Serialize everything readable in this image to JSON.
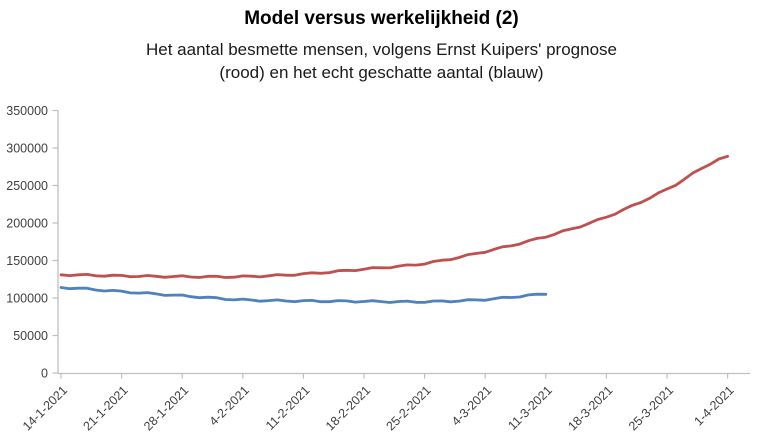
{
  "header": {
    "title": "Model versus werkelijkheid (2)",
    "subtitle_line1": "Het aantal besmette mensen, volgens Ernst Kuipers' prognose",
    "subtitle_line2": "(rood) en het echt geschatte aantal (blauw)"
  },
  "chart_data": {
    "type": "line",
    "title": "Model versus werkelijkheid (2)",
    "xlabel": "",
    "ylabel": "",
    "x_tick_labels": [
      "14-1-2021",
      "21-1-2021",
      "28-1-2021",
      "4-2-2021",
      "11-2-2021",
      "18-2-2021",
      "25-2-2021",
      "4-3-2021",
      "11-3-2021",
      "18-3-2021",
      "25-3-2021",
      "1-4-2021"
    ],
    "x_label_rotation_deg": -45,
    "y_tick_labels": [
      "0",
      "50000",
      "100000",
      "150000",
      "200000",
      "250000",
      "300000",
      "350000"
    ],
    "ylim": [
      0,
      350000
    ],
    "y_tick_step": 50000,
    "grid": false,
    "legend_position": "none (series colors explained in subtitle)",
    "series": [
      {
        "name": "Ernst Kuipers' prognose (rood)",
        "color": "#C0504D",
        "stroke_width": 2.8,
        "values_at_ticks": [
          131000,
          129500,
          128500,
          128500,
          132000,
          138500,
          146000,
          162000,
          182000,
          208000,
          245000,
          289000
        ]
      },
      {
        "name": "Echt geschatte aantal (blauw)",
        "color": "#4F81BD",
        "stroke_width": 2.8,
        "values_at_ticks": [
          114000,
          108500,
          103000,
          97500,
          96000,
          95500,
          95000,
          98000,
          105000
        ]
      }
    ]
  },
  "colors": {
    "background": "#ffffff",
    "axis": "#bfbfbf",
    "tick_text": "#404040",
    "title_text": "#000000",
    "prognosis_red": "#C0504D",
    "actual_blue": "#4F81BD"
  }
}
